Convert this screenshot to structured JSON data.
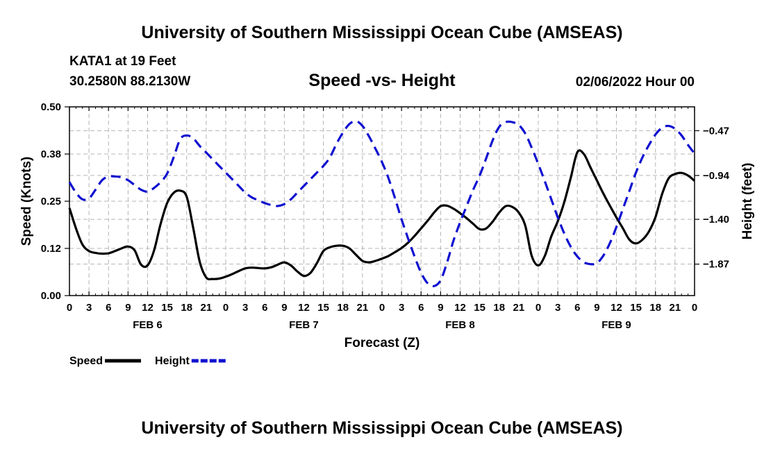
{
  "chart_data": {
    "type": "line",
    "title": "University of Southern Mississippi Ocean Cube (AMSEAS)",
    "subtitle": "Speed -vs- Height",
    "station": "KATA1 at 19 Feet",
    "coords": "30.2580N  88.2130W",
    "date_label": "02/06/2022 Hour 00",
    "xlabel": "Forecast (Z)",
    "ylabel_left": "Speed (Knots)",
    "ylabel_right": "Height (feet)",
    "xlim": [
      0,
      96
    ],
    "ylim_left": [
      0,
      0.5
    ],
    "ylim_right": [
      -2.2,
      -0.22
    ],
    "left_ticks": [
      {
        "value": 0.0,
        "label": "0.00"
      },
      {
        "value": 0.125,
        "label": "0.12"
      },
      {
        "value": 0.25,
        "label": "0.25"
      },
      {
        "value": 0.375,
        "label": "0.38"
      },
      {
        "value": 0.5,
        "label": "0.50"
      }
    ],
    "right_ticks": [
      {
        "value": -0.47,
        "label": "−0.47"
      },
      {
        "value": -0.94,
        "label": "−0.94"
      },
      {
        "value": -1.4,
        "label": "−1.40"
      },
      {
        "value": -1.87,
        "label": "−1.87"
      }
    ],
    "x_tick_labels": [
      "0",
      "3",
      "6",
      "9",
      "12",
      "15",
      "18",
      "21",
      "0",
      "3",
      "6",
      "9",
      "12",
      "15",
      "18",
      "21",
      "0",
      "3",
      "6",
      "9",
      "12",
      "15",
      "18",
      "21",
      "0",
      "3",
      "6",
      "9",
      "12",
      "15",
      "18",
      "21",
      "0"
    ],
    "day_labels": [
      {
        "label": "FEB 6",
        "hour": 12
      },
      {
        "label": "FEB 7",
        "hour": 36
      },
      {
        "label": "FEB 8",
        "hour": 60
      },
      {
        "label": "FEB 9",
        "hour": 84
      }
    ],
    "series": [
      {
        "name": "Speed",
        "axis": "left",
        "color": "#000000",
        "x": [
          0,
          1,
          2,
          3,
          4,
          5,
          6,
          7,
          8,
          9,
          10,
          11,
          12,
          13,
          14,
          15,
          16,
          17,
          18,
          19,
          20,
          21,
          22,
          23,
          24,
          25,
          26,
          27,
          28,
          29,
          30,
          31,
          32,
          33,
          34,
          35,
          36,
          37,
          38,
          39,
          40,
          41,
          42,
          43,
          44,
          45,
          46,
          47,
          48,
          49,
          50,
          51,
          52,
          53,
          54,
          55,
          56,
          57,
          58,
          59,
          60,
          61,
          62,
          63,
          64,
          65,
          66,
          67,
          68,
          69,
          70,
          71,
          72,
          73,
          74,
          75,
          76,
          77,
          78,
          79,
          80,
          81,
          82,
          83,
          84,
          85,
          86,
          87,
          88,
          89,
          90,
          91,
          92,
          93,
          94,
          95,
          96
        ],
        "values": [
          0.232,
          0.178,
          0.135,
          0.118,
          0.113,
          0.111,
          0.112,
          0.118,
          0.125,
          0.13,
          0.12,
          0.082,
          0.08,
          0.12,
          0.19,
          0.245,
          0.272,
          0.278,
          0.262,
          0.18,
          0.09,
          0.048,
          0.044,
          0.045,
          0.05,
          0.057,
          0.065,
          0.072,
          0.074,
          0.073,
          0.072,
          0.075,
          0.082,
          0.088,
          0.08,
          0.064,
          0.052,
          0.06,
          0.086,
          0.118,
          0.128,
          0.132,
          0.132,
          0.125,
          0.108,
          0.092,
          0.088,
          0.092,
          0.098,
          0.105,
          0.115,
          0.126,
          0.14,
          0.158,
          0.178,
          0.198,
          0.22,
          0.237,
          0.238,
          0.23,
          0.218,
          0.205,
          0.19,
          0.176,
          0.178,
          0.196,
          0.22,
          0.237,
          0.235,
          0.22,
          0.185,
          0.105,
          0.08,
          0.105,
          0.157,
          0.197,
          0.248,
          0.313,
          0.38,
          0.375,
          0.34,
          0.305,
          0.27,
          0.238,
          0.207,
          0.178,
          0.148,
          0.138,
          0.148,
          0.17,
          0.208,
          0.268,
          0.31,
          0.322,
          0.325,
          0.318,
          0.304
        ]
      },
      {
        "name": "Height",
        "axis": "right",
        "color": "#1010d0",
        "x": [
          0,
          1,
          2,
          3,
          4,
          5,
          6,
          7,
          8,
          9,
          10,
          11,
          12,
          13,
          14,
          15,
          16,
          17,
          18,
          19,
          20,
          21,
          22,
          23,
          24,
          25,
          26,
          27,
          28,
          29,
          30,
          31,
          32,
          33,
          34,
          35,
          36,
          37,
          38,
          39,
          40,
          41,
          42,
          43,
          44,
          45,
          46,
          47,
          48,
          49,
          50,
          51,
          52,
          53,
          54,
          55,
          56,
          57,
          58,
          59,
          60,
          61,
          62,
          63,
          64,
          65,
          66,
          67,
          68,
          69,
          70,
          71,
          72,
          73,
          74,
          75,
          76,
          77,
          78,
          79,
          80,
          81,
          82,
          83,
          84,
          85,
          86,
          87,
          88,
          89,
          90,
          91,
          92,
          93,
          94,
          95,
          96
        ],
        "values": [
          -1.01,
          -1.12,
          -1.19,
          -1.18,
          -1.09,
          -0.99,
          -0.95,
          -0.95,
          -0.96,
          -0.99,
          -1.04,
          -1.09,
          -1.11,
          -1.07,
          -1.01,
          -0.92,
          -0.75,
          -0.56,
          -0.52,
          -0.55,
          -0.63,
          -0.7,
          -0.77,
          -0.84,
          -0.91,
          -0.98,
          -1.05,
          -1.12,
          -1.17,
          -1.2,
          -1.23,
          -1.25,
          -1.26,
          -1.24,
          -1.19,
          -1.12,
          -1.05,
          -0.98,
          -0.91,
          -0.84,
          -0.75,
          -0.61,
          -0.49,
          -0.4,
          -0.37,
          -0.42,
          -0.53,
          -0.66,
          -0.8,
          -0.97,
          -1.18,
          -1.4,
          -1.6,
          -1.79,
          -1.96,
          -2.07,
          -2.1,
          -2.04,
          -1.85,
          -1.62,
          -1.43,
          -1.26,
          -1.09,
          -0.94,
          -0.76,
          -0.57,
          -0.43,
          -0.38,
          -0.38,
          -0.41,
          -0.5,
          -0.65,
          -0.82,
          -1.0,
          -1.19,
          -1.38,
          -1.55,
          -1.69,
          -1.79,
          -1.85,
          -1.87,
          -1.86,
          -1.78,
          -1.65,
          -1.48,
          -1.29,
          -1.1,
          -0.91,
          -0.75,
          -0.62,
          -0.51,
          -0.44,
          -0.42,
          -0.45,
          -0.52,
          -0.62,
          -0.71
        ]
      }
    ],
    "legend": [
      {
        "label": "Speed",
        "color": "#000000",
        "dash": "solid"
      },
      {
        "label": "Height",
        "color": "#1010d0",
        "dash": "dashed"
      }
    ],
    "footer": "University of Southern Mississippi Ocean Cube (AMSEAS)"
  }
}
